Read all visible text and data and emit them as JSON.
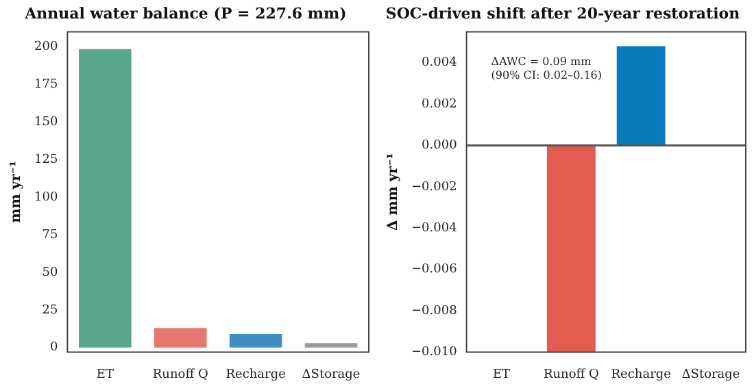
{
  "chart_data": [
    {
      "type": "bar",
      "title": "Annual water balance (P = 227.6 mm)",
      "ylabel": "mm yr⁻¹",
      "categories": [
        "ET",
        "Runoff Q",
        "Recharge",
        "ΔStorage"
      ],
      "values": [
        198.5,
        13,
        9,
        3
      ],
      "colors": [
        "#5aa68a",
        "#e8776f",
        "#3c8fc0",
        "#9a9a9a"
      ],
      "ylim": [
        -3,
        210
      ],
      "yticks": [
        0,
        25,
        50,
        75,
        100,
        125,
        150,
        175,
        200
      ],
      "grid": false,
      "legend": false
    },
    {
      "type": "bar",
      "title": "SOC-driven shift after 20-year restoration",
      "ylabel": "Δ mm yr⁻¹",
      "categories": [
        "ET",
        "Runoff Q",
        "Recharge",
        "ΔStorage"
      ],
      "values": [
        0,
        -0.01,
        0.0048,
        0
      ],
      "colors": [
        "#5aa68a",
        "#e45b50",
        "#0a7bbd",
        "#9a9a9a"
      ],
      "ylim": [
        -0.01,
        0.0055
      ],
      "yticks": [
        {
          "value": -0.01,
          "label": "−0.010"
        },
        {
          "value": -0.008,
          "label": "−0.008"
        },
        {
          "value": -0.006,
          "label": "−0.006"
        },
        {
          "value": -0.004,
          "label": "−0.004"
        },
        {
          "value": -0.002,
          "label": "−0.002"
        },
        {
          "value": 0,
          "label": "0.000"
        },
        {
          "value": 0.002,
          "label": "0.002"
        },
        {
          "value": 0.004,
          "label": "0.004"
        }
      ],
      "ref_lines": [
        {
          "axis": "y",
          "value": 0,
          "color": "#555555"
        }
      ],
      "annotations": [
        "ΔAWC = 0.09 mm\n(90% CI: 0.02–0.16)"
      ],
      "grid": false,
      "legend": false
    }
  ]
}
